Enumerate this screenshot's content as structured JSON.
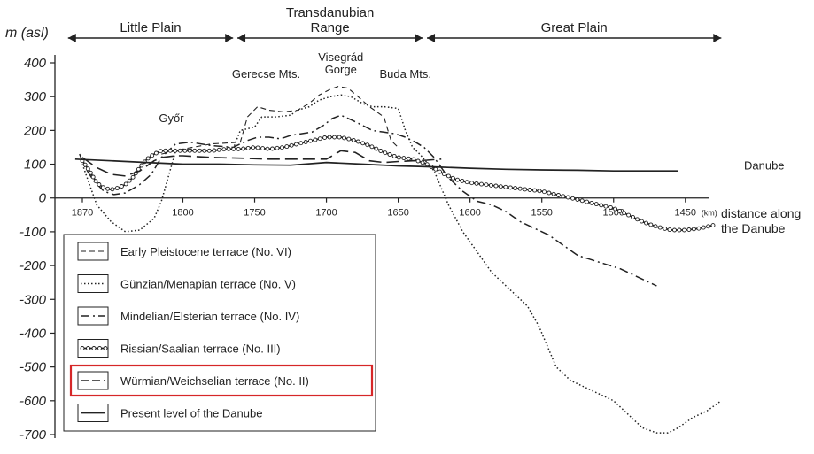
{
  "chart_data": {
    "type": "line",
    "ylabel": "m (asl)",
    "xlabel": "distance along the Danube",
    "xlabel_lines": [
      "distance along",
      "the Danube"
    ],
    "x_unit": "(km)",
    "xlim": [
      1880,
      1420
    ],
    "ylim": [
      -700,
      400
    ],
    "x_ticks": [
      1870,
      1800,
      1750,
      1700,
      1650,
      1600,
      1550,
      1500,
      1450
    ],
    "x_tick_labels": [
      "1870",
      "1800",
      "1750",
      "1700",
      "1650",
      "1600",
      "1550",
      "1500",
      "1450"
    ],
    "y_ticks": [
      400,
      300,
      200,
      100,
      0,
      -100,
      -200,
      -300,
      -400,
      -500,
      -600,
      -700
    ],
    "y_tick_labels": [
      "400",
      "300",
      "200",
      "100",
      "0",
      "-100",
      "-200",
      "-300",
      "-400",
      "-500",
      "-600",
      "-700"
    ],
    "regions": [
      {
        "label_lines": [
          "Little Plain"
        ],
        "from": 1880,
        "to": 1765
      },
      {
        "label_lines": [
          "Transdanubian",
          "Range"
        ],
        "from": 1762,
        "to": 1633
      },
      {
        "label_lines": [
          "Great Plain"
        ],
        "from": 1630,
        "to": 1425
      }
    ],
    "place_labels": [
      {
        "lines": [
          "Győr"
        ],
        "x": 1808,
        "y": 225
      },
      {
        "lines": [
          "Gerecse Mts."
        ],
        "x": 1742,
        "y": 355
      },
      {
        "lines": [
          "Visegrád",
          "Gorge"
        ],
        "x": 1690,
        "y": 405
      },
      {
        "lines": [
          "Buda Mts."
        ],
        "x": 1645,
        "y": 355
      },
      {
        "lines": [
          "Danube"
        ],
        "x": 1400,
        "y": 85
      }
    ],
    "series": [
      {
        "name": "Early  Pleistocene terrace (No. VI)",
        "style": "dashed",
        "x": [
          1815,
          1800,
          1780,
          1760,
          1755,
          1748,
          1740,
          1730,
          1720,
          1712,
          1705,
          1698,
          1692,
          1685,
          1678,
          1670,
          1660,
          1655,
          1650
        ],
        "y": [
          130,
          145,
          160,
          165,
          240,
          270,
          260,
          255,
          260,
          280,
          305,
          320,
          330,
          325,
          300,
          270,
          240,
          170,
          150
        ]
      },
      {
        "name": "Günzian/Menapian terrace (No. V)",
        "style": "dotted",
        "x": [
          1870,
          1865,
          1860,
          1850,
          1840,
          1830,
          1820,
          1815,
          1805,
          1795,
          1780,
          1765,
          1760,
          1750,
          1745,
          1735,
          1725,
          1720,
          1712,
          1705,
          1697,
          1690,
          1683,
          1675,
          1668,
          1660,
          1650,
          1645,
          1640,
          1635,
          1625,
          1615,
          1605,
          1595,
          1585,
          1570,
          1560,
          1552,
          1545,
          1540,
          1530,
          1520,
          1510,
          1500,
          1490,
          1480,
          1470,
          1462,
          1455,
          1445,
          1435,
          1425
        ],
        "y": [
          100,
          40,
          -20,
          -70,
          -100,
          -95,
          -60,
          -10,
          140,
          145,
          140,
          145,
          200,
          210,
          240,
          240,
          245,
          260,
          270,
          290,
          300,
          305,
          300,
          280,
          270,
          270,
          265,
          200,
          150,
          130,
          80,
          -20,
          -100,
          -160,
          -220,
          -280,
          -320,
          -380,
          -450,
          -500,
          -540,
          -560,
          -580,
          -600,
          -640,
          -680,
          -695,
          -695,
          -680,
          -650,
          -630,
          -600
        ]
      },
      {
        "name": "Mindelian/Elsterian terrace (No. IV)",
        "style": "dashdot",
        "x": [
          1872,
          1868,
          1862,
          1855,
          1848,
          1840,
          1830,
          1822,
          1815,
          1805,
          1795,
          1780,
          1765,
          1755,
          1748,
          1740,
          1732,
          1725,
          1718,
          1710,
          1702,
          1696,
          1690,
          1682,
          1675,
          1668,
          1660,
          1652,
          1645,
          1638,
          1632,
          1625,
          1615,
          1605,
          1595,
          1585,
          1575,
          1565,
          1555,
          1545,
          1535,
          1525,
          1510,
          1495,
          1480,
          1470
        ],
        "y": [
          130,
          90,
          50,
          20,
          10,
          15,
          40,
          70,
          120,
          160,
          165,
          155,
          150,
          170,
          180,
          180,
          175,
          185,
          190,
          195,
          215,
          235,
          245,
          230,
          215,
          200,
          195,
          190,
          180,
          165,
          150,
          120,
          60,
          20,
          -10,
          -20,
          -40,
          -70,
          -90,
          -110,
          -140,
          -170,
          -190,
          -210,
          -240,
          -260
        ]
      },
      {
        "name": "Rissian/Saalian terrace (No. III)",
        "style": "circles",
        "x": [
          1870,
          1865,
          1860,
          1855,
          1850,
          1845,
          1840,
          1835,
          1830,
          1825,
          1820,
          1815,
          1810,
          1805,
          1800,
          1790,
          1780,
          1770,
          1760,
          1750,
          1740,
          1730,
          1720,
          1710,
          1700,
          1690,
          1680,
          1670,
          1660,
          1650,
          1640,
          1630,
          1620,
          1610,
          1600,
          1590,
          1580,
          1570,
          1560,
          1550,
          1540,
          1530,
          1520,
          1510,
          1500,
          1490,
          1480,
          1470,
          1460,
          1450,
          1440,
          1430
        ],
        "y": [
          110,
          80,
          45,
          30,
          25,
          30,
          40,
          60,
          90,
          115,
          130,
          140,
          140,
          140,
          140,
          140,
          140,
          145,
          145,
          150,
          145,
          150,
          160,
          170,
          180,
          180,
          170,
          155,
          135,
          120,
          115,
          100,
          75,
          55,
          45,
          40,
          35,
          30,
          25,
          20,
          10,
          0,
          -10,
          -20,
          -30,
          -50,
          -70,
          -85,
          -95,
          -95,
          -90,
          -80
        ]
      },
      {
        "name": "Würmian/Weichselian terrace (No. II)",
        "style": "longdash",
        "x": [
          1870,
          1860,
          1850,
          1840,
          1830,
          1820,
          1815,
          1805,
          1800,
          1780,
          1760,
          1740,
          1720,
          1700,
          1690,
          1680,
          1670,
          1660,
          1650,
          1640,
          1630,
          1620
        ],
        "y": [
          120,
          90,
          70,
          65,
          80,
          110,
          120,
          125,
          125,
          120,
          118,
          115,
          115,
          115,
          140,
          135,
          110,
          105,
          108,
          110,
          112,
          115
        ]
      },
      {
        "name": "Present level of the Danube",
        "style": "solid",
        "x": [
          1875,
          1850,
          1825,
          1800,
          1775,
          1750,
          1725,
          1700,
          1675,
          1650,
          1625,
          1600,
          1575,
          1550,
          1525,
          1500,
          1475,
          1455
        ],
        "y": [
          115,
          110,
          105,
          100,
          100,
          98,
          97,
          105,
          100,
          95,
          92,
          88,
          85,
          83,
          82,
          80,
          80,
          80
        ]
      }
    ],
    "legend": {
      "placement": "bottom-left",
      "highlighted_entry": "Würmian/Weichselian terrace (No. II)",
      "highlight_color": "#d62728"
    },
    "grid": false
  }
}
